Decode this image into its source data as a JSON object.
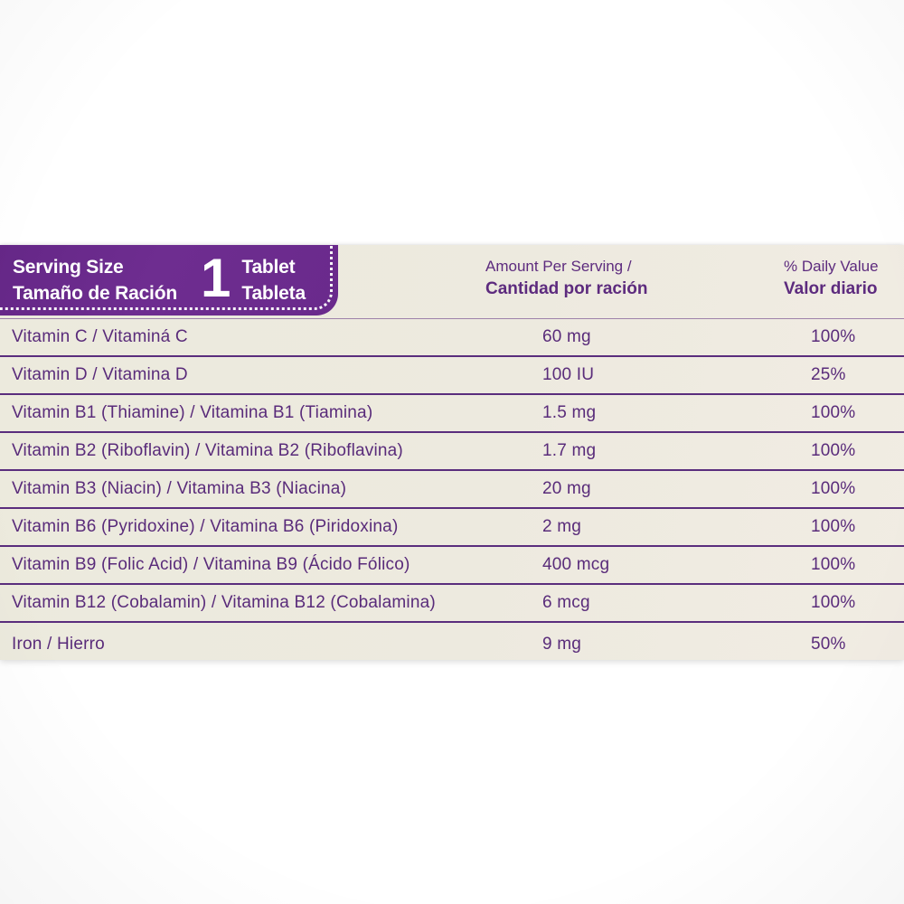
{
  "label": {
    "serving": {
      "size_en": "Serving Size",
      "size_es": "Tamaño de Ración",
      "quantity": "1",
      "unit_en": "Tablet",
      "unit_es": "Tableta"
    },
    "columns": {
      "amount_en": "Amount Per Serving /",
      "amount_es": "Cantidad por ración",
      "dv_en": "% Daily Value",
      "dv_es": "Valor diario"
    },
    "rows": [
      {
        "name": "Vitamin C / Vitaminá C",
        "amount": "60 mg",
        "dv": "100%"
      },
      {
        "name": "Vitamin D / Vitamina D",
        "amount": "100 IU",
        "dv": "25%"
      },
      {
        "name": "Vitamin B1 (Thiamine) / Vitamina B1 (Tiamina)",
        "amount": "1.5 mg",
        "dv": "100%"
      },
      {
        "name": "Vitamin B2 (Riboflavin) / Vitamina B2 (Riboflavina)",
        "amount": "1.7 mg",
        "dv": "100%"
      },
      {
        "name": "Vitamin B3 (Niacin) / Vitamina B3 (Niacina)",
        "amount": "20 mg",
        "dv": "100%"
      },
      {
        "name": "Vitamin B6 (Pyridoxine) / Vitamina B6 (Piridoxina)",
        "amount": "2 mg",
        "dv": "100%"
      },
      {
        "name": "Vitamin B9 (Folic Acid) / Vitamina B9 (Ácido Fólico)",
        "amount": "400 mcg",
        "dv": "100%"
      },
      {
        "name": "Vitamin B12 (Cobalamin) / Vitamina B12 (Cobalamina)",
        "amount": "6 mcg",
        "dv": "100%"
      },
      {
        "name": "Iron / Hierro",
        "amount": "9 mg",
        "dv": "50%"
      }
    ],
    "colors": {
      "banner_purple": "#6e2d90",
      "text_purple": "#5c2b7d",
      "rule_purple": "#5a2d7d",
      "label_cream": "#edeade",
      "page_background": "#ffffff"
    }
  }
}
